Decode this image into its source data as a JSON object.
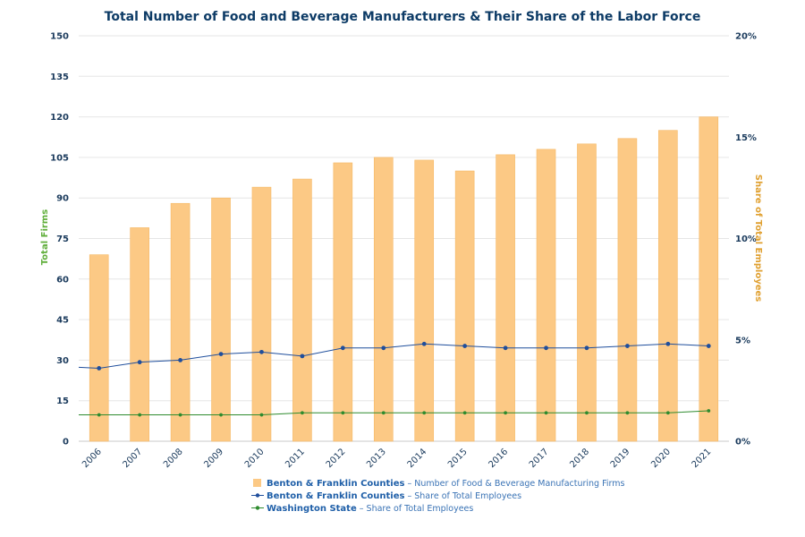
{
  "chart_data": {
    "type": "bar+line",
    "title": "Total Number of Food and Beverage Manufacturers & Their Share of the Labor Force",
    "ylabel_left": "Total Firms",
    "ylabel_right": "Share of Total Employees",
    "categories": [
      "2006",
      "2007",
      "2008",
      "2009",
      "2010",
      "2011",
      "2012",
      "2013",
      "2014",
      "2015",
      "2016",
      "2017",
      "2018",
      "2019",
      "2020",
      "2021"
    ],
    "left_axis": {
      "range": [
        0,
        150
      ],
      "ticks": [
        "0",
        "15",
        "30",
        "45",
        "60",
        "75",
        "90",
        "105",
        "120",
        "135",
        "150"
      ]
    },
    "right_axis": {
      "range": [
        0,
        20
      ],
      "ticks": [
        "0%",
        "5%",
        "10%",
        "15%",
        "20%"
      ]
    },
    "series": [
      {
        "name": "Benton & Franklin Counties",
        "desc": " – Number of Food & Beverage Manufacturing Firms",
        "type": "bar",
        "axis": "left",
        "color": "#fcc985",
        "values": [
          69,
          79,
          88,
          90,
          94,
          97,
          103,
          105,
          104,
          100,
          106,
          108,
          110,
          112,
          115,
          120
        ]
      },
      {
        "name": "Benton & Franklin Counties",
        "desc": " – Share of Total Employees",
        "type": "line",
        "axis": "right",
        "color": "#1f4e9c",
        "values": [
          3.6,
          3.9,
          4.0,
          4.3,
          4.4,
          4.2,
          4.6,
          4.6,
          4.8,
          4.7,
          4.6,
          4.6,
          4.6,
          4.7,
          4.8,
          4.7
        ]
      },
      {
        "name": "Washington State",
        "desc": " – Share of Total Employees",
        "type": "line",
        "axis": "right",
        "color": "#2e8b2e",
        "values": [
          1.3,
          1.3,
          1.3,
          1.3,
          1.3,
          1.4,
          1.4,
          1.4,
          1.4,
          1.4,
          1.4,
          1.4,
          1.4,
          1.4,
          1.4,
          1.5
        ]
      }
    ],
    "line_start_values": {
      "benton_share": 3.65,
      "wa_share": 1.3
    }
  }
}
